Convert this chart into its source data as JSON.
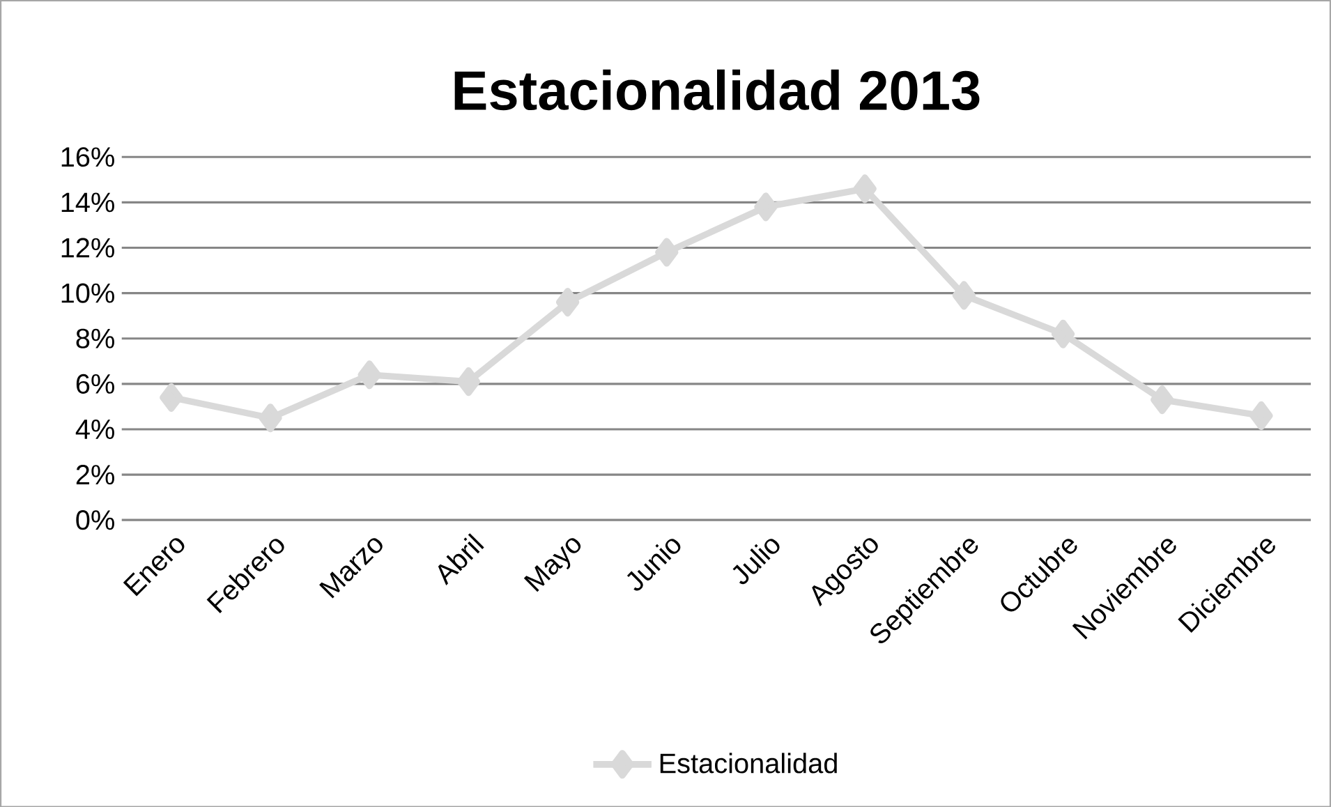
{
  "chart_data": {
    "type": "line",
    "title": "Estacionalidad 2013",
    "categories": [
      "Enero",
      "Febrero",
      "Marzo",
      "Abril",
      "Mayo",
      "Junio",
      "Julio",
      "Agosto",
      "Septiembre",
      "Octubre",
      "Noviembre",
      "Diciembre"
    ],
    "series": [
      {
        "name": "Estacionalidad",
        "color": "#d9d9d9",
        "values": [
          5.4,
          4.5,
          6.4,
          6.1,
          9.6,
          11.8,
          13.8,
          14.6,
          9.9,
          8.2,
          5.3,
          4.6
        ]
      }
    ],
    "ylim": [
      0,
      16
    ],
    "yticks": [
      {
        "value": 0,
        "label": "0%"
      },
      {
        "value": 2,
        "label": "2%"
      },
      {
        "value": 4,
        "label": "4%"
      },
      {
        "value": 6,
        "label": "6%"
      },
      {
        "value": 8,
        "label": "8%"
      },
      {
        "value": 10,
        "label": "10%"
      },
      {
        "value": 12,
        "label": "12%"
      },
      {
        "value": 14,
        "label": "14%"
      },
      {
        "value": 16,
        "label": "16%"
      }
    ],
    "grid": "y",
    "legend": "bottom",
    "marker": "diamond",
    "line_style": "solid"
  }
}
